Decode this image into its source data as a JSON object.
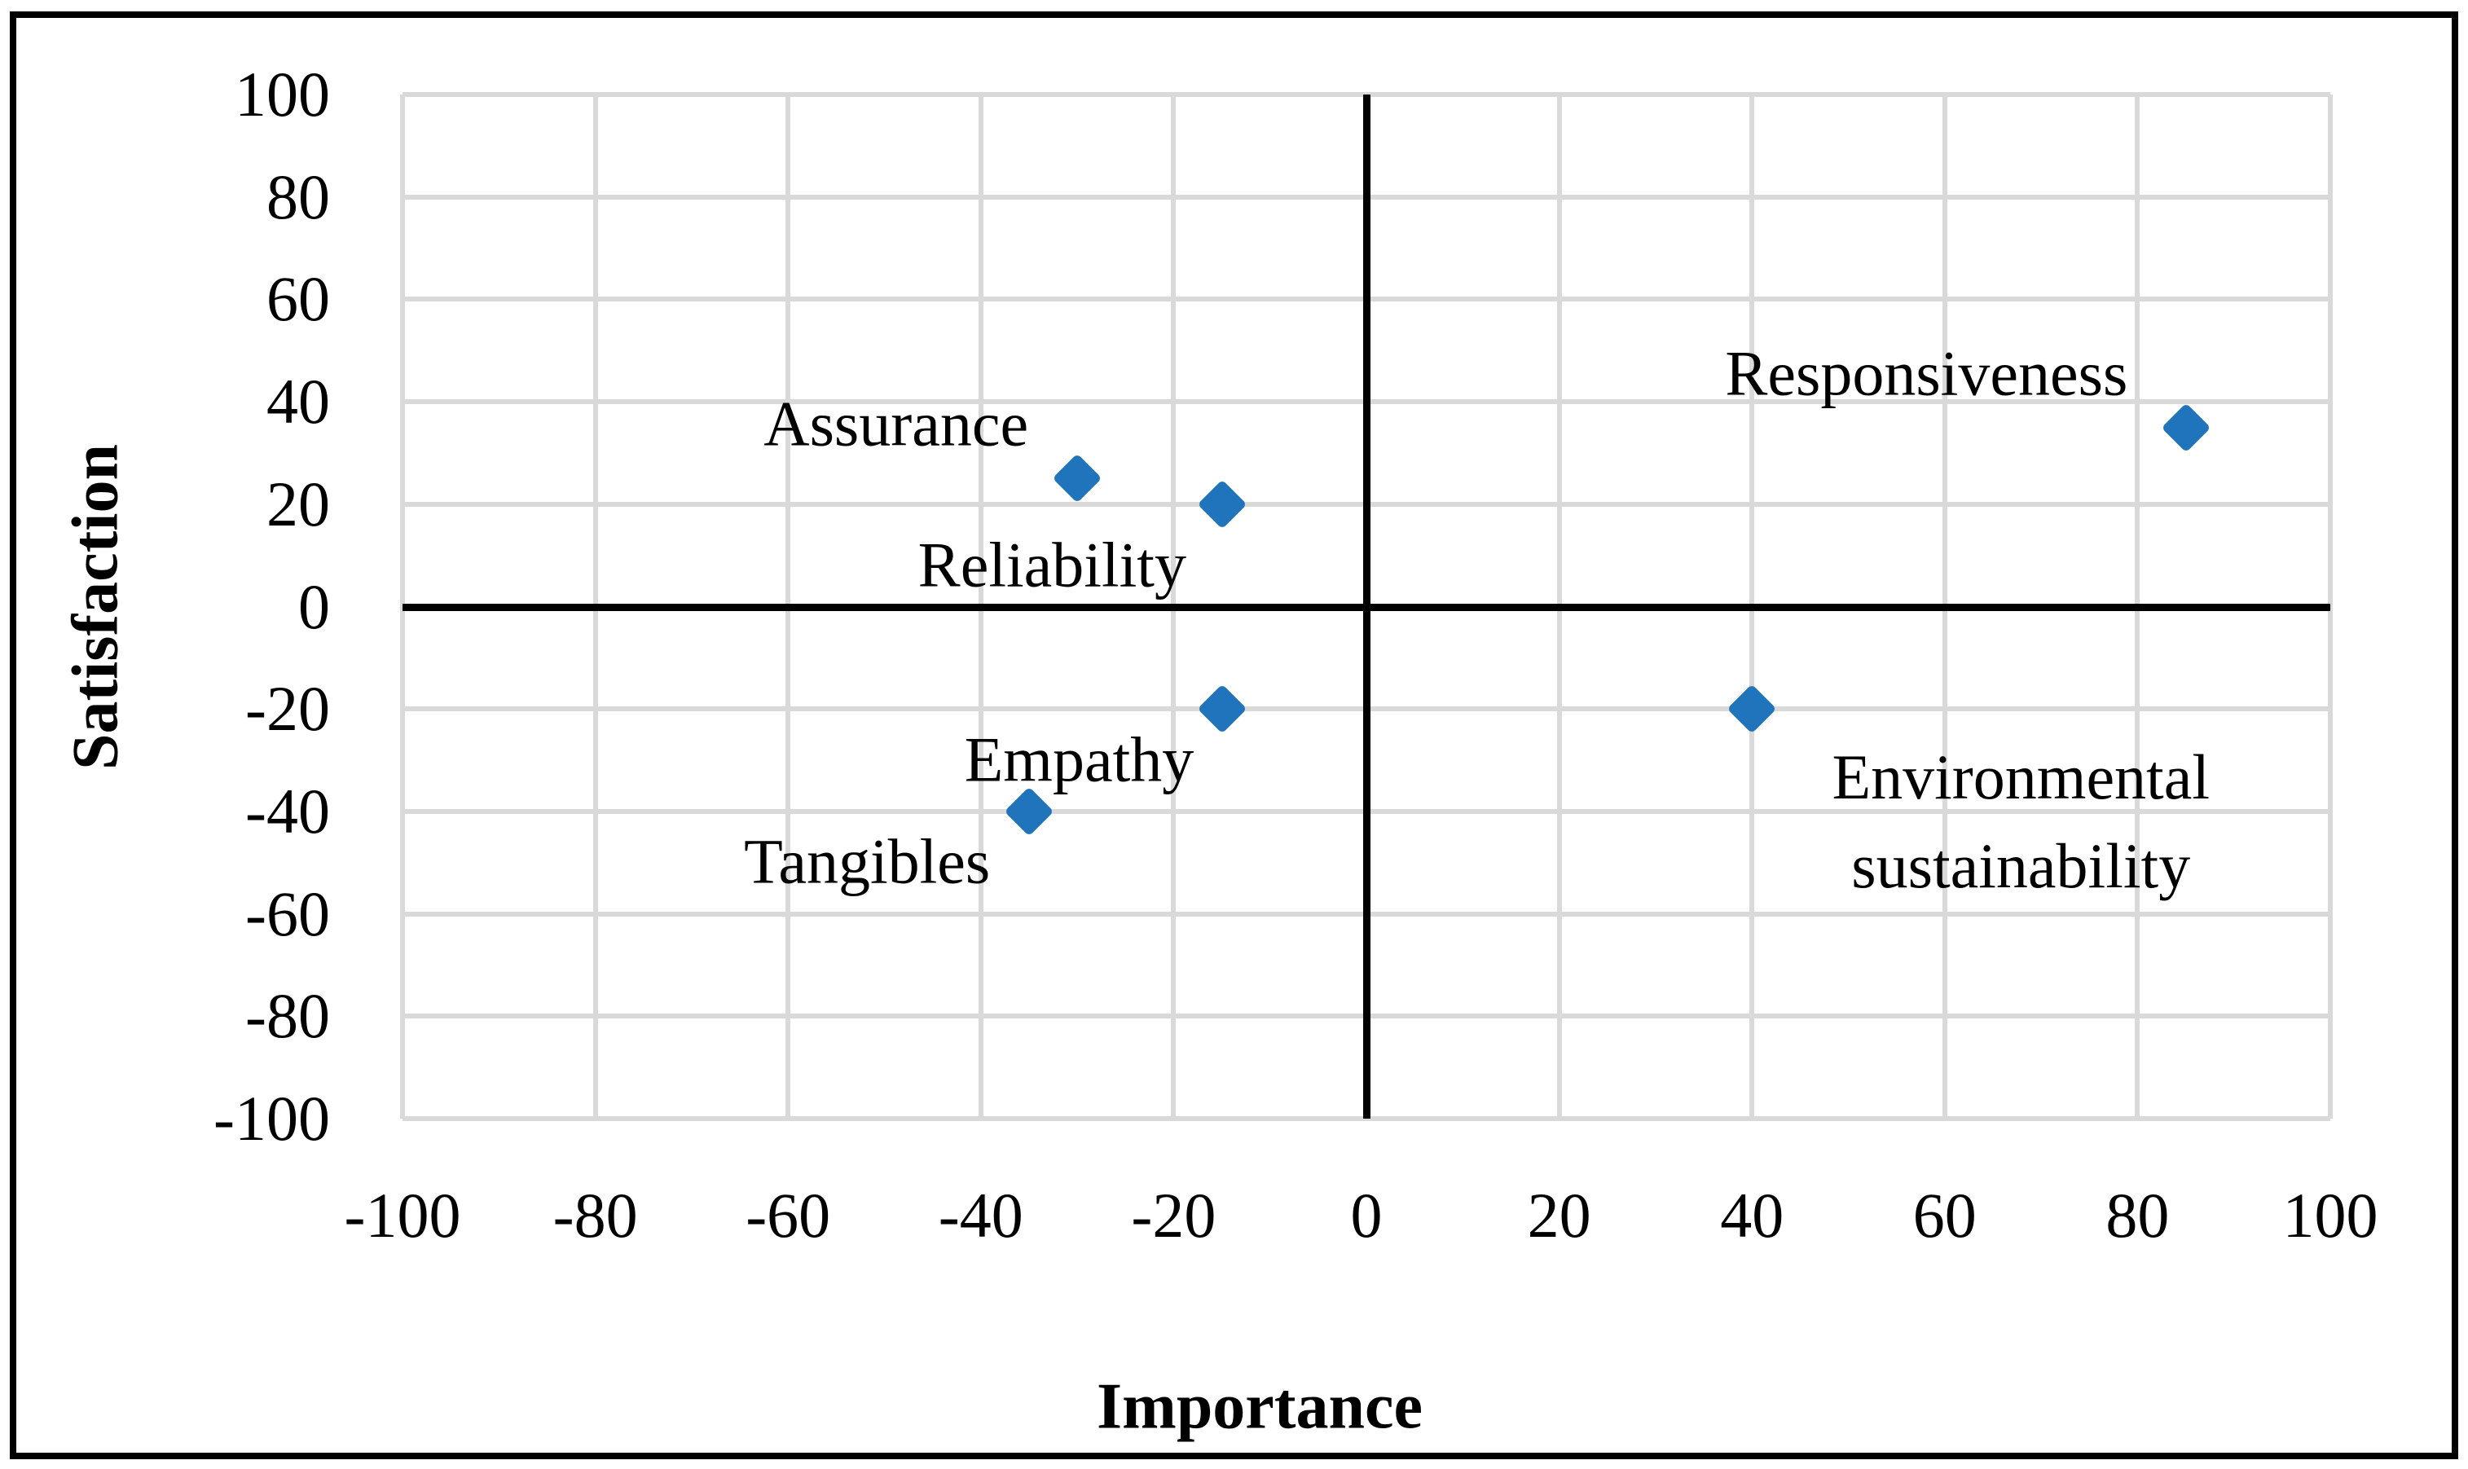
{
  "chart_data": {
    "type": "scatter",
    "title": "",
    "xlabel": "Importance",
    "ylabel": "Satisfaction",
    "xlim": [
      -100,
      100
    ],
    "ylim": [
      -100,
      100
    ],
    "x_ticks": [
      -100,
      -80,
      -60,
      -40,
      -20,
      0,
      20,
      40,
      60,
      80,
      100
    ],
    "y_ticks": [
      -100,
      -80,
      -60,
      -40,
      -20,
      0,
      20,
      40,
      60,
      80,
      100
    ],
    "grid": true,
    "legend": "none",
    "marker": "diamond",
    "colors": {
      "marker": "#2074BC",
      "gridline": "#D9D9D9",
      "axis": "#000000",
      "text": "#000000",
      "background": "#FFFFFF",
      "border": "#000000"
    },
    "points": [
      {
        "label": "Assurance",
        "x": -30,
        "y": 25,
        "label_x": -48.8,
        "label_y": 35.7
      },
      {
        "label": "Reliability",
        "x": -15,
        "y": 20,
        "label_x": -32.6,
        "label_y": 8.2
      },
      {
        "label": "Empathy",
        "x": -15,
        "y": -20,
        "label_x": -29.8,
        "label_y": -29.8
      },
      {
        "label": "Tangibles",
        "x": -35,
        "y": -40,
        "label_x": -51.8,
        "label_y": -49.7
      },
      {
        "label": "Environmental sustainability",
        "x": 40,
        "y": -20,
        "label_x": 67.9,
        "label_y": -41.9,
        "label_display": "Environmental\nsustainability"
      },
      {
        "label": "Responsiveness",
        "x": 85,
        "y": 35,
        "label_x": 58.1,
        "label_y": 45.6
      }
    ]
  }
}
